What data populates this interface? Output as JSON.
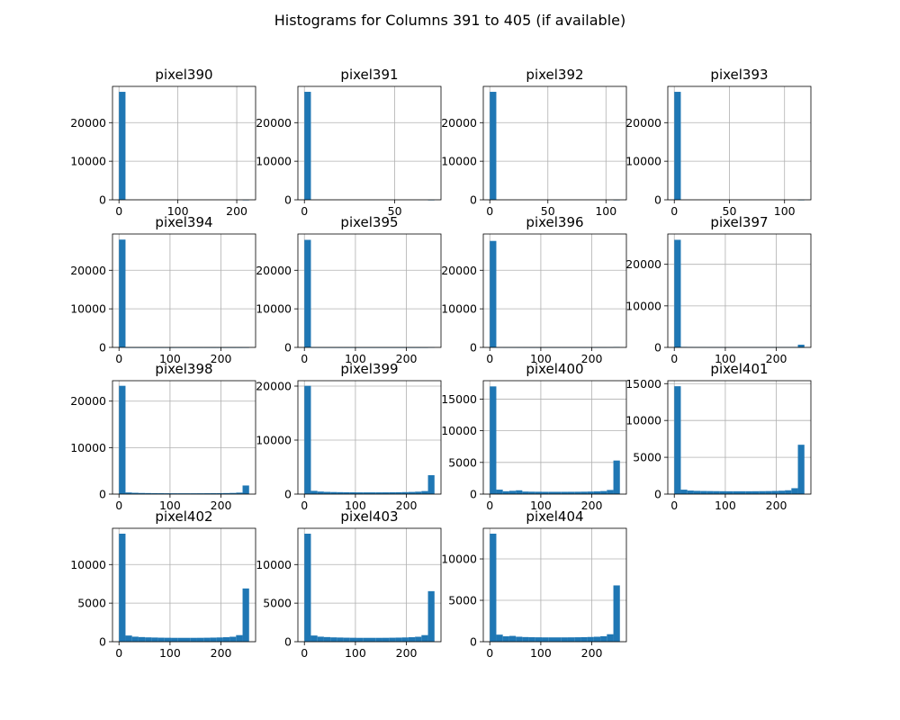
{
  "figure": {
    "title": "Histograms for Columns 391 to 405 (if available)"
  },
  "style": {
    "bar_color": "#1f77b4",
    "grid_color": "#b0b0b0"
  },
  "chart_data": [
    {
      "type": "bar",
      "title": "pixel390",
      "bin_edges": [
        0,
        221
      ],
      "xlim": [
        -11,
        232
      ],
      "ylim": [
        0,
        29400
      ],
      "xticks": [
        0,
        100,
        200
      ],
      "yticks": [
        0,
        10000,
        20000
      ],
      "values": [
        27990,
        0,
        0,
        0,
        0,
        0,
        0,
        0,
        0,
        0,
        0,
        0,
        0,
        0,
        0,
        0,
        0,
        0,
        0,
        1
      ]
    },
    {
      "type": "bar",
      "title": "pixel391",
      "bin_edges": [
        0,
        72
      ],
      "xlim": [
        -3.6,
        75.6
      ],
      "ylim": [
        0,
        29400
      ],
      "xticks": [
        0,
        50
      ],
      "yticks": [
        0,
        10000,
        20000
      ],
      "values": [
        27995,
        0,
        0,
        0,
        0,
        0,
        0,
        0,
        0,
        0,
        0,
        0,
        0,
        0,
        0,
        0,
        0,
        0,
        0,
        1
      ]
    },
    {
      "type": "bar",
      "title": "pixel392",
      "bin_edges": [
        0,
        112
      ],
      "xlim": [
        -5.6,
        117.6
      ],
      "ylim": [
        0,
        29400
      ],
      "xticks": [
        0,
        50,
        100
      ],
      "yticks": [
        0,
        10000,
        20000
      ],
      "values": [
        27993,
        0,
        0,
        0,
        0,
        0,
        0,
        0,
        0,
        0,
        0,
        0,
        0,
        0,
        0,
        0,
        0,
        0,
        0,
        1
      ]
    },
    {
      "type": "bar",
      "title": "pixel393",
      "bin_edges": [
        0,
        118
      ],
      "xlim": [
        -5.9,
        123.9
      ],
      "ylim": [
        0,
        29400
      ],
      "xticks": [
        0,
        50,
        100
      ],
      "yticks": [
        0,
        10000,
        20000
      ],
      "values": [
        27990,
        0,
        0,
        0,
        0,
        0,
        0,
        0,
        0,
        0,
        0,
        0,
        0,
        0,
        0,
        0,
        0,
        0,
        0,
        2
      ]
    },
    {
      "type": "bar",
      "title": "pixel394",
      "bin_edges": [
        0,
        255
      ],
      "xlim": [
        -12.75,
        267.75
      ],
      "ylim": [
        0,
        29400
      ],
      "xticks": [
        0,
        100,
        200
      ],
      "yticks": [
        0,
        10000,
        20000
      ],
      "values": [
        27950,
        5,
        4,
        3,
        3,
        2,
        2,
        2,
        2,
        2,
        2,
        2,
        2,
        2,
        2,
        2,
        2,
        2,
        3,
        8
      ]
    },
    {
      "type": "bar",
      "title": "pixel395",
      "bin_edges": [
        0,
        255
      ],
      "xlim": [
        -12.75,
        267.75
      ],
      "ylim": [
        0,
        29400
      ],
      "xticks": [
        0,
        100,
        200
      ],
      "yticks": [
        0,
        10000,
        20000
      ],
      "values": [
        27880,
        10,
        8,
        6,
        6,
        5,
        5,
        4,
        4,
        4,
        4,
        4,
        4,
        4,
        4,
        4,
        5,
        5,
        6,
        30
      ]
    },
    {
      "type": "bar",
      "title": "pixel396",
      "bin_edges": [
        0,
        255
      ],
      "xlim": [
        -12.75,
        267.75
      ],
      "ylim": [
        0,
        29400
      ],
      "xticks": [
        0,
        100,
        200
      ],
      "yticks": [
        0,
        10000,
        20000
      ],
      "values": [
        27600,
        30,
        22,
        20,
        18,
        16,
        15,
        14,
        14,
        14,
        14,
        14,
        14,
        14,
        15,
        16,
        18,
        20,
        25,
        120
      ]
    },
    {
      "type": "bar",
      "title": "pixel397",
      "bin_edges": [
        0,
        255
      ],
      "xlim": [
        -12.75,
        267.75
      ],
      "ylim": [
        0,
        27300
      ],
      "xticks": [
        0,
        100,
        200
      ],
      "yticks": [
        0,
        10000,
        20000
      ],
      "values": [
        25900,
        120,
        90,
        80,
        70,
        60,
        60,
        55,
        55,
        55,
        55,
        55,
        55,
        55,
        60,
        65,
        70,
        80,
        100,
        650
      ]
    },
    {
      "type": "bar",
      "title": "pixel398",
      "bin_edges": [
        0,
        255
      ],
      "xlim": [
        -12.75,
        267.75
      ],
      "ylim": [
        0,
        24400
      ],
      "xticks": [
        0,
        100,
        200
      ],
      "yticks": [
        0,
        10000,
        20000
      ],
      "values": [
        23300,
        350,
        280,
        240,
        220,
        200,
        190,
        180,
        175,
        175,
        175,
        175,
        180,
        185,
        195,
        205,
        220,
        250,
        320,
        1850
      ]
    },
    {
      "type": "bar",
      "title": "pixel399",
      "bin_edges": [
        0,
        255
      ],
      "xlim": [
        -12.75,
        267.75
      ],
      "ylim": [
        0,
        21000
      ],
      "xticks": [
        0,
        100,
        200
      ],
      "yticks": [
        0,
        10000,
        20000
      ],
      "values": [
        20050,
        600,
        470,
        410,
        380,
        360,
        340,
        330,
        320,
        320,
        320,
        320,
        325,
        335,
        350,
        370,
        400,
        450,
        560,
        3500
      ]
    },
    {
      "type": "bar",
      "title": "pixel400",
      "bin_edges": [
        0,
        255
      ],
      "xlim": [
        -12.75,
        267.75
      ],
      "ylim": [
        0,
        17900
      ],
      "xticks": [
        0,
        100,
        200
      ],
      "yticks": [
        0,
        5000,
        10000,
        15000
      ],
      "values": [
        17000,
        700,
        450,
        520,
        600,
        400,
        380,
        370,
        360,
        360,
        360,
        360,
        365,
        370,
        380,
        400,
        430,
        480,
        650,
        5300
      ]
    },
    {
      "type": "bar",
      "title": "pixel401",
      "bin_edges": [
        0,
        255
      ],
      "xlim": [
        -12.75,
        267.75
      ],
      "ylim": [
        0,
        15400
      ],
      "xticks": [
        0,
        100,
        200
      ],
      "yticks": [
        0,
        5000,
        10000,
        15000
      ],
      "values": [
        14650,
        600,
        480,
        440,
        420,
        410,
        400,
        390,
        385,
        385,
        385,
        385,
        390,
        400,
        410,
        430,
        460,
        520,
        800,
        6700
      ]
    },
    {
      "type": "bar",
      "title": "pixel402",
      "bin_edges": [
        0,
        255
      ],
      "xlim": [
        -12.75,
        267.75
      ],
      "ylim": [
        0,
        14700
      ],
      "xticks": [
        0,
        100,
        200
      ],
      "yticks": [
        0,
        5000,
        10000
      ],
      "values": [
        14000,
        800,
        650,
        600,
        560,
        540,
        520,
        510,
        500,
        500,
        500,
        500,
        505,
        515,
        530,
        550,
        580,
        640,
        850,
        6900
      ]
    },
    {
      "type": "bar",
      "title": "pixel403",
      "bin_edges": [
        0,
        255
      ],
      "xlim": [
        -12.75,
        267.75
      ],
      "ylim": [
        0,
        14700
      ],
      "xticks": [
        0,
        100,
        200
      ],
      "yticks": [
        0,
        5000,
        10000
      ],
      "values": [
        14000,
        800,
        650,
        600,
        560,
        540,
        520,
        510,
        500,
        500,
        500,
        500,
        505,
        515,
        530,
        550,
        580,
        640,
        850,
        6550
      ]
    },
    {
      "type": "bar",
      "title": "pixel404",
      "bin_edges": [
        0,
        255
      ],
      "xlim": [
        -12.75,
        267.75
      ],
      "ylim": [
        0,
        13700
      ],
      "xticks": [
        0,
        100,
        200
      ],
      "yticks": [
        0,
        5000,
        10000
      ],
      "values": [
        13050,
        850,
        650,
        700,
        600,
        560,
        540,
        530,
        520,
        520,
        520,
        520,
        525,
        535,
        550,
        570,
        600,
        660,
        900,
        6800
      ]
    }
  ]
}
